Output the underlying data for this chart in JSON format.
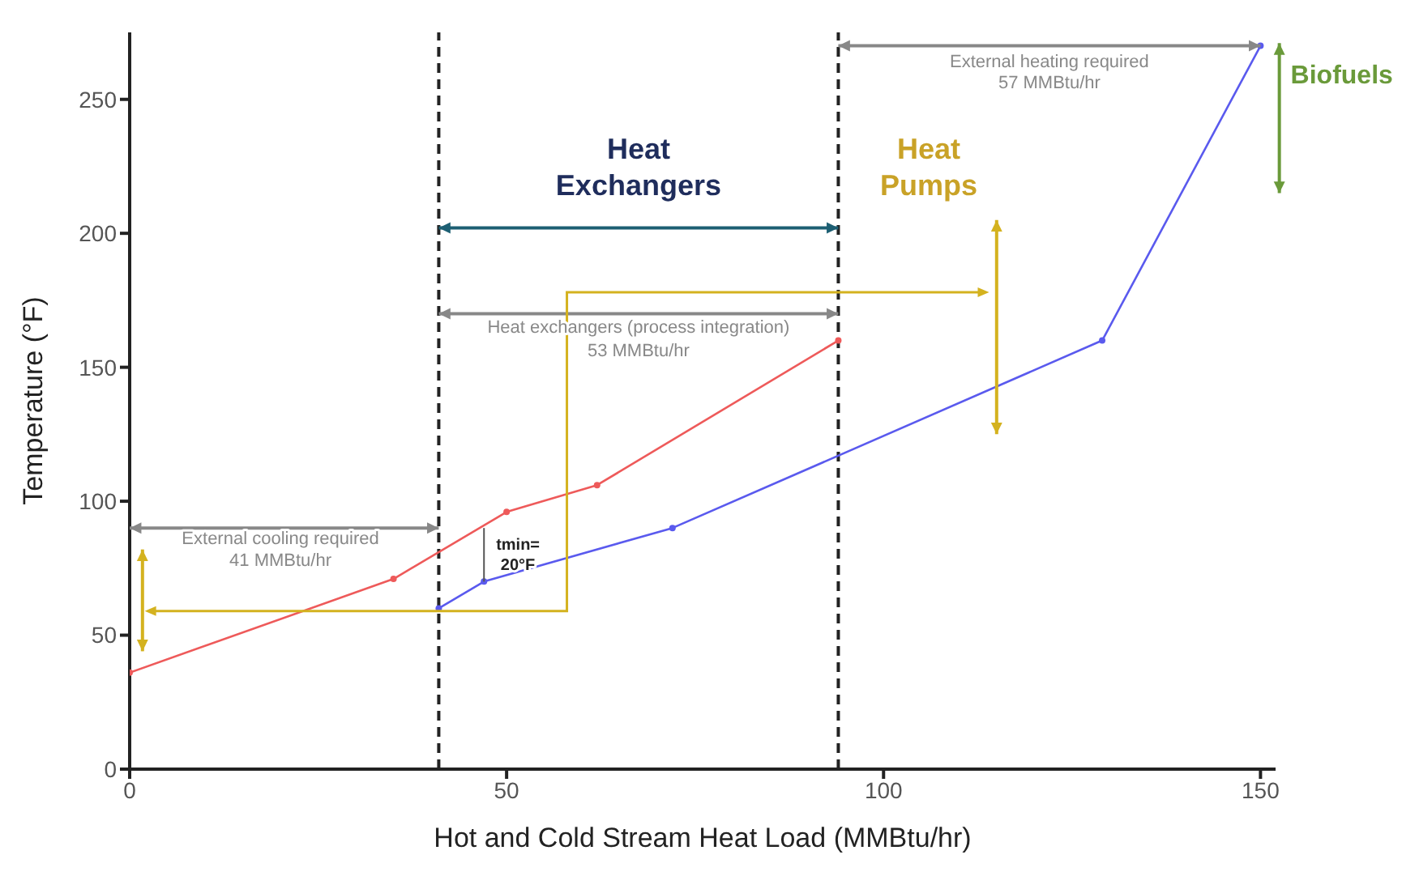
{
  "chart_data": {
    "type": "line",
    "xlabel": "Hot and Cold Stream Heat Load (MMBtu/hr)",
    "ylabel": "Temperature (°F)",
    "xlim": [
      0,
      152
    ],
    "ylim": [
      0,
      275
    ],
    "xticks": [
      0,
      50,
      100,
      150
    ],
    "yticks": [
      0,
      50,
      100,
      150,
      200,
      250
    ],
    "grid": false,
    "marker": "circle",
    "line_style": "solid",
    "series": [
      {
        "color": "#ee5a5a",
        "x": [
          0,
          35,
          50,
          62,
          94
        ],
        "values": [
          36,
          71,
          96,
          106,
          160
        ]
      },
      {
        "color": "#5a5aee",
        "x": [
          41,
          47,
          72,
          129,
          150
        ],
        "values": [
          60,
          70,
          90,
          160,
          270
        ]
      }
    ],
    "ref_lines": [
      {
        "axis": "x",
        "value": 41,
        "color": "#222222",
        "line_style": "dashed"
      },
      {
        "axis": "x",
        "value": 94,
        "color": "#222222",
        "line_style": "dashed"
      }
    ],
    "annotations": [
      "Heat\nExchangers",
      "Heat\nPumps",
      "Biofuels",
      "External cooling required",
      "41 MMBtu/hr",
      "Heat exchangers (process integration)",
      "53 MMBtu/hr",
      "External heating required",
      "57 MMBtu/hr",
      "tmin=\n20°F"
    ]
  }
}
